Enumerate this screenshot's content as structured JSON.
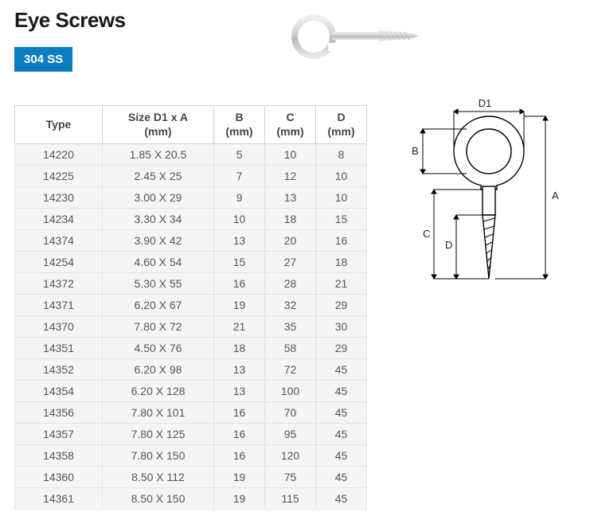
{
  "header": {
    "title": "Eye Screws",
    "badge": "304 SS"
  },
  "table": {
    "columns": [
      {
        "key": "type",
        "label_line1": "Type",
        "label_line2": ""
      },
      {
        "key": "size",
        "label_line1": "Size D1 x A",
        "label_line2": "(mm)"
      },
      {
        "key": "b",
        "label_line1": "B",
        "label_line2": "(mm)"
      },
      {
        "key": "c",
        "label_line1": "C",
        "label_line2": "(mm)"
      },
      {
        "key": "d",
        "label_line1": "D",
        "label_line2": "(mm)"
      }
    ],
    "rows": [
      {
        "type": "14220",
        "size": "1.85 X 20.5",
        "b": "5",
        "c": "10",
        "d": "8"
      },
      {
        "type": "14225",
        "size": "2.45 X 25",
        "b": "7",
        "c": "12",
        "d": "10"
      },
      {
        "type": "14230",
        "size": "3.00 X 29",
        "b": "9",
        "c": "13",
        "d": "10"
      },
      {
        "type": "14234",
        "size": "3.30 X 34",
        "b": "10",
        "c": "18",
        "d": "15"
      },
      {
        "type": "14374",
        "size": "3.90 X 42",
        "b": "13",
        "c": "20",
        "d": "16"
      },
      {
        "type": "14254",
        "size": "4.60 X 54",
        "b": "15",
        "c": "27",
        "d": "18"
      },
      {
        "type": "14372",
        "size": "5.30 X 55",
        "b": "16",
        "c": "28",
        "d": "21"
      },
      {
        "type": "14371",
        "size": "6.20 X 67",
        "b": "19",
        "c": "32",
        "d": "29"
      },
      {
        "type": "14370",
        "size": "7.80 X 72",
        "b": "21",
        "c": "35",
        "d": "30"
      },
      {
        "type": "14351",
        "size": "4.50 X 76",
        "b": "18",
        "c": "58",
        "d": "29"
      },
      {
        "type": "14352",
        "size": "6.20 X 98",
        "b": "13",
        "c": "72",
        "d": "45"
      },
      {
        "type": "14354",
        "size": "6.20 X 128",
        "b": "13",
        "c": "100",
        "d": "45"
      },
      {
        "type": "14356",
        "size": "7.80 X 101",
        "b": "16",
        "c": "70",
        "d": "45"
      },
      {
        "type": "14357",
        "size": "7.80 X 125",
        "b": "16",
        "c": "95",
        "d": "45"
      },
      {
        "type": "14358",
        "size": "7.80 X 150",
        "b": "16",
        "c": "120",
        "d": "45"
      },
      {
        "type": "14360",
        "size": "8.50 X 112",
        "b": "19",
        "c": "75",
        "d": "45"
      },
      {
        "type": "14361",
        "size": "8.50 X 150",
        "b": "19",
        "c": "115",
        "d": "45"
      }
    ],
    "header_bg": "#ffffff",
    "row_bg": "#f5f5f5",
    "border_color": "#d0d0d0",
    "font_size": 14
  },
  "diagram": {
    "labels": {
      "d1": "D1",
      "a": "A",
      "b": "B",
      "c": "C",
      "d": "D"
    },
    "stroke": "#000000",
    "stroke_width": 1.4
  },
  "colors": {
    "badge_bg": "#0d7dc1",
    "badge_text": "#ffffff",
    "title": "#1a1a1a",
    "body_text": "#555555"
  }
}
